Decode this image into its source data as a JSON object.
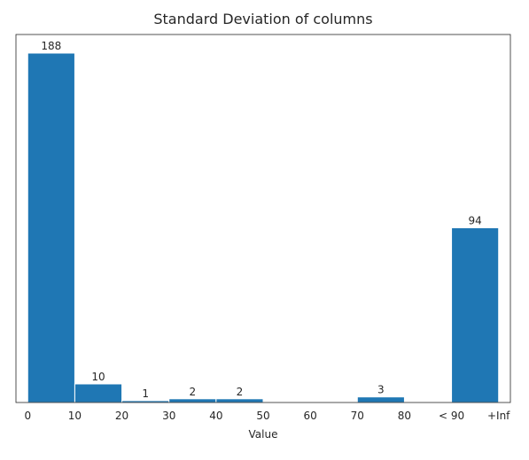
{
  "chart_data": {
    "type": "bar",
    "title": "Standard Deviation of columns",
    "xlabel": "Value",
    "ylabel": "",
    "bins": [
      {
        "start": 0,
        "end": 10,
        "value": 188
      },
      {
        "start": 10,
        "end": 20,
        "value": 10
      },
      {
        "start": 20,
        "end": 30,
        "value": 1
      },
      {
        "start": 30,
        "end": 40,
        "value": 2
      },
      {
        "start": 40,
        "end": 50,
        "value": 2
      },
      {
        "start": 50,
        "end": 60,
        "value": 0
      },
      {
        "start": 60,
        "end": 70,
        "value": 0
      },
      {
        "start": 70,
        "end": 80,
        "value": 3
      },
      {
        "start": 80,
        "end": 90,
        "value": 0
      },
      {
        "start": 90,
        "end": 100,
        "value": 94
      }
    ],
    "x_ticks": [
      "0",
      "10",
      "20",
      "30",
      "40",
      "50",
      "60",
      "70",
      "80",
      "< 90",
      "+Inf"
    ],
    "xlim": [
      -2.5,
      102.5
    ],
    "ylim": [
      0,
      188
    ],
    "y_ticks_shown": false,
    "grid": false,
    "bar_color": "#1f77b4",
    "edge_color": "#ffffff"
  }
}
